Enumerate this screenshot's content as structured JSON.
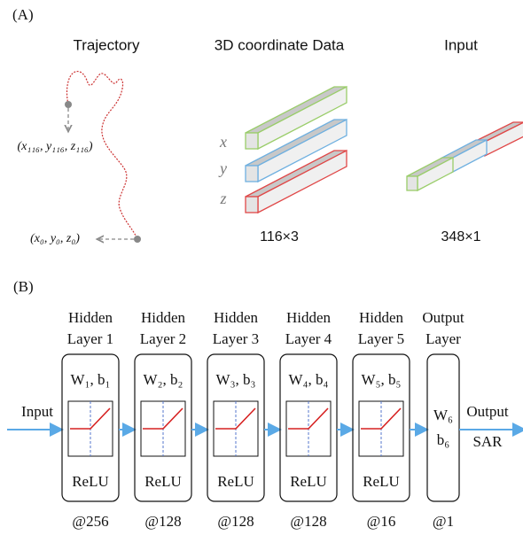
{
  "panel_a": {
    "label": "(A)",
    "trajectory": {
      "title": "Trajectory",
      "start_point": "(x₁₁₆, y₁₁₆, z₁₁₆)",
      "end_point": "(x₀, y₀, z₀)"
    },
    "coordinate_data": {
      "title": "3D coordinate Data",
      "axes": [
        "x",
        "y",
        "z"
      ],
      "shape": "116×3"
    },
    "input": {
      "title": "Input",
      "shape": "348×1"
    }
  },
  "panel_b": {
    "label": "(B)",
    "input_label": "Input",
    "output_label": "Output",
    "output_name": "SAR",
    "layers": [
      {
        "title": [
          "Hidden",
          "Layer 1"
        ],
        "params": [
          "W₁, b₁"
        ],
        "activation": "ReLU",
        "units": "@256"
      },
      {
        "title": [
          "Hidden",
          "Layer 2"
        ],
        "params": [
          "W₂, b₂"
        ],
        "activation": "ReLU",
        "units": "@128"
      },
      {
        "title": [
          "Hidden",
          "Layer 3"
        ],
        "params": [
          "W₃, b₃"
        ],
        "activation": "ReLU",
        "units": "@128"
      },
      {
        "title": [
          "Hidden",
          "Layer 4"
        ],
        "params": [
          "W₄, b₄"
        ],
        "activation": "ReLU",
        "units": "@128"
      },
      {
        "title": [
          "Hidden",
          "Layer 5"
        ],
        "params": [
          "W₅, b₅"
        ],
        "activation": "ReLU",
        "units": "@16"
      },
      {
        "title": [
          "Output",
          "Layer"
        ],
        "params": [
          "W₆",
          "b₆"
        ],
        "units": "@1"
      }
    ]
  }
}
